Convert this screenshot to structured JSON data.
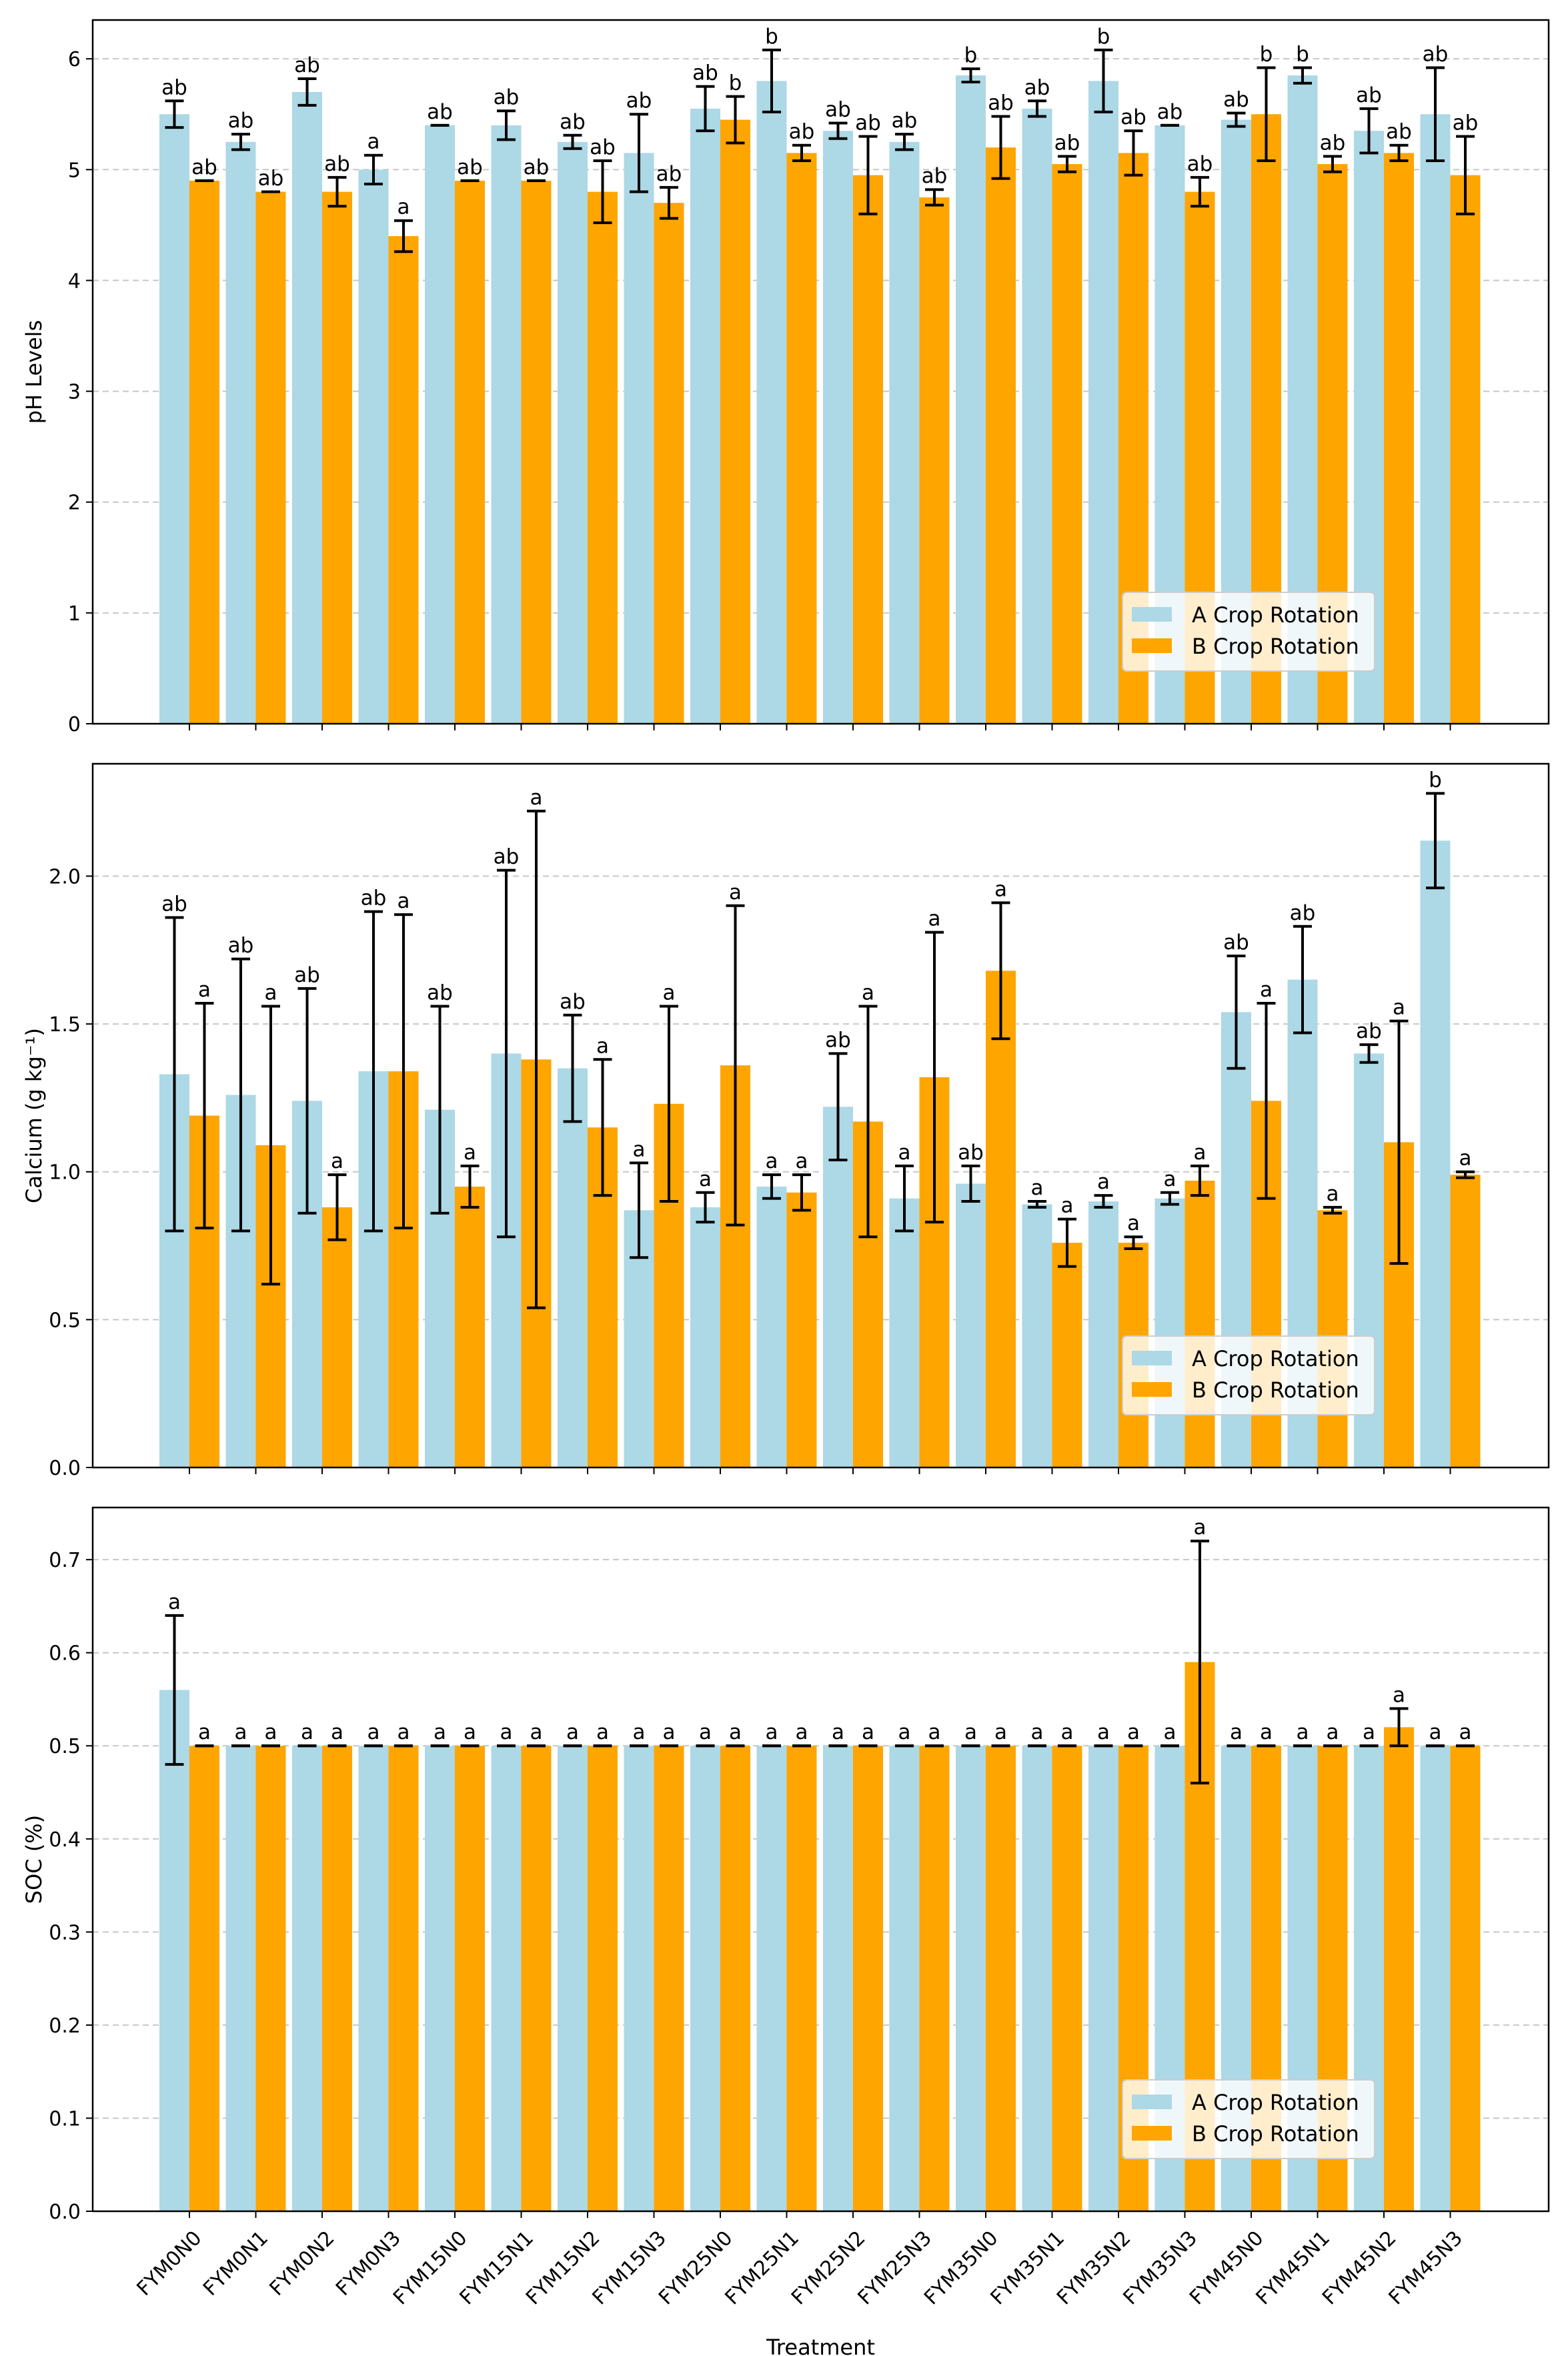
{
  "chart_data": [
    {
      "type": "bar",
      "ylabel": "pH Levels",
      "xlabel": "",
      "ylim": [
        0,
        6.35
      ],
      "yticks": [
        0,
        1,
        2,
        3,
        4,
        5,
        6
      ],
      "ytick_labels": [
        "0",
        "1",
        "2",
        "3",
        "4",
        "5",
        "6"
      ],
      "grid": true,
      "legend_position": "lower-right",
      "categories": [
        "FYM0N0",
        "FYM0N1",
        "FYM0N2",
        "FYM0N3",
        "FYM15N0",
        "FYM15N1",
        "FYM15N2",
        "FYM15N3",
        "FYM25N0",
        "FYM25N1",
        "FYM25N2",
        "FYM25N3",
        "FYM35N0",
        "FYM35N1",
        "FYM35N2",
        "FYM35N3",
        "FYM45N0",
        "FYM45N1",
        "FYM45N2",
        "FYM45N3"
      ],
      "series": [
        {
          "name": "A Crop Rotation",
          "color": "#add8e6",
          "values": [
            5.5,
            5.25,
            5.7,
            5.0,
            5.4,
            5.4,
            5.25,
            5.15,
            5.55,
            5.8,
            5.35,
            5.25,
            5.85,
            5.55,
            5.8,
            5.4,
            5.45,
            5.85,
            5.35,
            5.5
          ],
          "errors": [
            0.12,
            0.07,
            0.12,
            0.13,
            0.0,
            0.13,
            0.06,
            0.35,
            0.2,
            0.28,
            0.07,
            0.07,
            0.06,
            0.07,
            0.28,
            0.0,
            0.06,
            0.07,
            0.2,
            0.42
          ],
          "sig_labels": [
            "ab",
            "ab",
            "ab",
            "a",
            "ab",
            "ab",
            "ab",
            "ab",
            "ab",
            "b",
            "ab",
            "ab",
            "b",
            "ab",
            "b",
            "ab",
            "ab",
            "b",
            "ab",
            "ab"
          ]
        },
        {
          "name": "B Crop Rotation",
          "color": "#ffa500",
          "values": [
            4.9,
            4.8,
            4.8,
            4.4,
            4.9,
            4.9,
            4.8,
            4.7,
            5.45,
            5.15,
            4.95,
            4.75,
            5.2,
            5.05,
            5.15,
            4.8,
            5.5,
            5.05,
            5.15,
            4.95
          ],
          "errors": [
            0.0,
            0.0,
            0.13,
            0.14,
            0.0,
            0.0,
            0.28,
            0.14,
            0.21,
            0.07,
            0.35,
            0.07,
            0.28,
            0.07,
            0.2,
            0.13,
            0.42,
            0.07,
            0.07,
            0.35
          ],
          "sig_labels": [
            "ab",
            "ab",
            "ab",
            "a",
            "ab",
            "ab",
            "ab",
            "ab",
            "b",
            "ab",
            "ab",
            "ab",
            "ab",
            "ab",
            "ab",
            "ab",
            "b",
            "ab",
            "ab",
            "ab"
          ]
        }
      ]
    },
    {
      "type": "bar",
      "ylabel": "Calcium (g kg⁻¹)",
      "xlabel": "",
      "ylim": [
        0,
        2.38
      ],
      "yticks": [
        0,
        0.5,
        1,
        1.5,
        2
      ],
      "ytick_labels": [
        "0.0",
        "0.5",
        "1.0",
        "1.5",
        "2.0"
      ],
      "grid": true,
      "legend_position": "lower-right",
      "categories": [
        "FYM0N0",
        "FYM0N1",
        "FYM0N2",
        "FYM0N3",
        "FYM15N0",
        "FYM15N1",
        "FYM15N2",
        "FYM15N3",
        "FYM25N0",
        "FYM25N1",
        "FYM25N2",
        "FYM25N3",
        "FYM35N0",
        "FYM35N1",
        "FYM35N2",
        "FYM35N3",
        "FYM45N0",
        "FYM45N1",
        "FYM45N2",
        "FYM45N3"
      ],
      "series": [
        {
          "name": "A Crop Rotation",
          "color": "#add8e6",
          "values": [
            1.33,
            1.26,
            1.24,
            1.34,
            1.21,
            1.4,
            1.35,
            0.87,
            0.88,
            0.95,
            1.22,
            0.91,
            0.96,
            0.89,
            0.9,
            0.91,
            1.54,
            1.65,
            1.4,
            2.12
          ],
          "errors": [
            0.53,
            0.46,
            0.38,
            0.54,
            0.35,
            0.62,
            0.18,
            0.16,
            0.05,
            0.04,
            0.18,
            0.11,
            0.06,
            0.01,
            0.02,
            0.02,
            0.19,
            0.18,
            0.03,
            0.16
          ],
          "sig_labels": [
            "ab",
            "ab",
            "ab",
            "ab",
            "ab",
            "ab",
            "ab",
            "a",
            "a",
            "a",
            "ab",
            "a",
            "ab",
            "a",
            "a",
            "a",
            "ab",
            "ab",
            "ab",
            "b"
          ]
        },
        {
          "name": "B Crop Rotation",
          "color": "#ffa500",
          "values": [
            1.19,
            1.09,
            0.88,
            1.34,
            0.95,
            1.38,
            1.15,
            1.23,
            1.36,
            0.93,
            1.17,
            1.32,
            1.68,
            0.76,
            0.76,
            0.97,
            1.24,
            0.87,
            1.1,
            0.99
          ],
          "errors": [
            0.38,
            0.47,
            0.11,
            0.53,
            0.07,
            0.84,
            0.23,
            0.33,
            0.54,
            0.06,
            0.39,
            0.49,
            0.23,
            0.08,
            0.02,
            0.05,
            0.33,
            0.01,
            0.41,
            0.01
          ],
          "sig_labels": [
            "a",
            "a",
            "a",
            "a",
            "a",
            "a",
            "a",
            "a",
            "a",
            "a",
            "a",
            "a",
            "a",
            "a",
            "a",
            "a",
            "a",
            "a",
            "a",
            "a"
          ]
        }
      ]
    },
    {
      "type": "bar",
      "ylabel": "SOC (%)",
      "xlabel": "Treatment",
      "ylim": [
        0,
        0.756
      ],
      "yticks": [
        0,
        0.1,
        0.2,
        0.3,
        0.4,
        0.5,
        0.6,
        0.7
      ],
      "ytick_labels": [
        "0.0",
        "0.1",
        "0.2",
        "0.3",
        "0.4",
        "0.5",
        "0.6",
        "0.7"
      ],
      "grid": true,
      "legend_position": "lower-right",
      "categories": [
        "FYM0N0",
        "FYM0N1",
        "FYM0N2",
        "FYM0N3",
        "FYM15N0",
        "FYM15N1",
        "FYM15N2",
        "FYM15N3",
        "FYM25N0",
        "FYM25N1",
        "FYM25N2",
        "FYM25N3",
        "FYM35N0",
        "FYM35N1",
        "FYM35N2",
        "FYM35N3",
        "FYM45N0",
        "FYM45N1",
        "FYM45N2",
        "FYM45N3"
      ],
      "series": [
        {
          "name": "A Crop Rotation",
          "color": "#add8e6",
          "values": [
            0.56,
            0.5,
            0.5,
            0.5,
            0.5,
            0.5,
            0.5,
            0.5,
            0.5,
            0.5,
            0.5,
            0.5,
            0.5,
            0.5,
            0.5,
            0.5,
            0.5,
            0.5,
            0.5,
            0.5
          ],
          "errors": [
            0.08,
            0,
            0,
            0,
            0,
            0,
            0,
            0,
            0,
            0,
            0,
            0,
            0,
            0,
            0,
            0,
            0,
            0,
            0,
            0
          ],
          "sig_labels": [
            "a",
            "a",
            "a",
            "a",
            "a",
            "a",
            "a",
            "a",
            "a",
            "a",
            "a",
            "a",
            "a",
            "a",
            "a",
            "a",
            "a",
            "a",
            "a",
            "a"
          ]
        },
        {
          "name": "B Crop Rotation",
          "color": "#ffa500",
          "values": [
            0.5,
            0.5,
            0.5,
            0.5,
            0.5,
            0.5,
            0.5,
            0.5,
            0.5,
            0.5,
            0.5,
            0.5,
            0.5,
            0.5,
            0.5,
            0.59,
            0.5,
            0.5,
            0.52,
            0.5
          ],
          "errors": [
            0,
            0,
            0,
            0,
            0,
            0,
            0,
            0,
            0,
            0,
            0,
            0,
            0,
            0,
            0,
            0.13,
            0,
            0,
            0.02,
            0
          ],
          "sig_labels": [
            "a",
            "a",
            "a",
            "a",
            "a",
            "a",
            "a",
            "a",
            "a",
            "a",
            "a",
            "a",
            "a",
            "a",
            "a",
            "a",
            "a",
            "a",
            "a",
            "a"
          ]
        }
      ]
    }
  ]
}
